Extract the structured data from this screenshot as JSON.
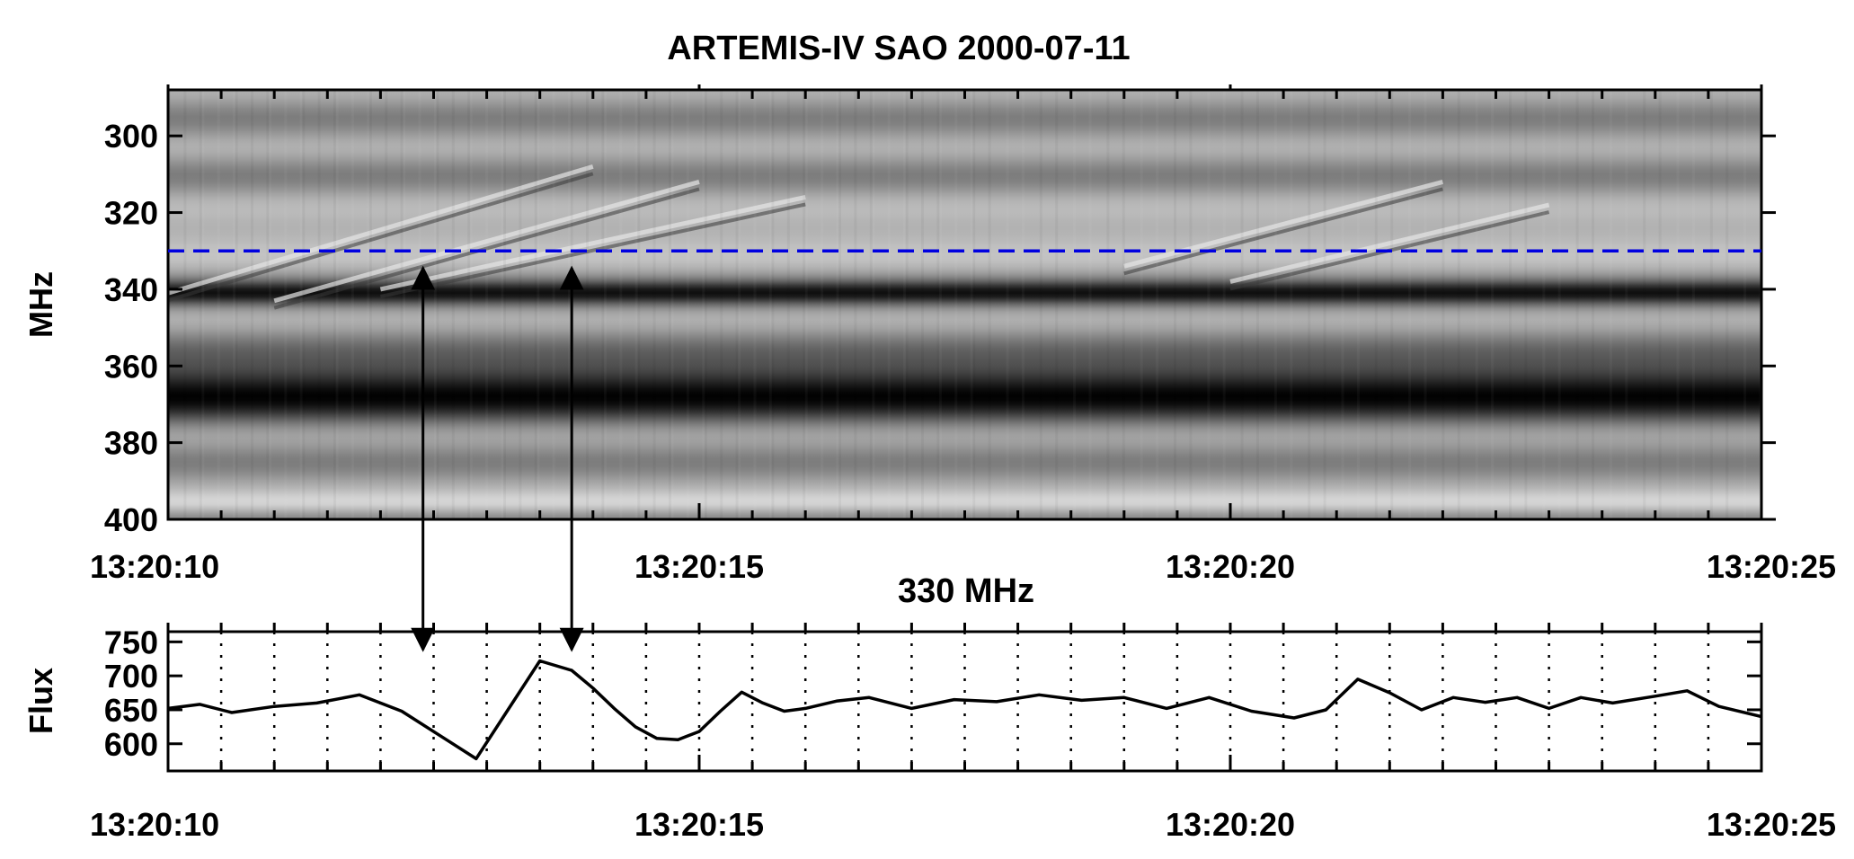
{
  "chart_data": [
    {
      "type": "heatmap",
      "title": "ARTEMIS-IV  SAO 2000-07-11",
      "xlabel": "",
      "ylabel": "MHz",
      "x_range": [
        "13:20:10",
        "13:20:25"
      ],
      "x_ticklabels": [
        "13:20:10",
        "13:20:15",
        "13:20:20",
        "13:20:25"
      ],
      "ylim": [
        400,
        288
      ],
      "y_ticks": [
        300,
        320,
        340,
        360,
        380,
        400
      ],
      "y_ticklabels": [
        "300",
        "320",
        "340",
        "360",
        "380",
        "400"
      ],
      "colormap": "grayscale (dark = strong emission)",
      "marked_frequency": 330,
      "marked_frequency_color": "#0000e0",
      "dark_bands_mhz": [
        {
          "center": 341,
          "half_width": 3,
          "strength": 0.75
        },
        {
          "center": 366,
          "half_width": 8,
          "strength": 0.95
        }
      ],
      "bright_bands_mhz": [
        {
          "center": 396,
          "half_width": 3
        },
        {
          "center": 326,
          "half_width": 6
        }
      ],
      "drifting_features": [
        {
          "start": [
            "13:20:10",
            341
          ],
          "end": [
            "13:20:14",
            308
          ]
        },
        {
          "start": [
            "13:20:11",
            343
          ],
          "end": [
            "13:20:15",
            312
          ]
        },
        {
          "start": [
            "13:20:12",
            340
          ],
          "end": [
            "13:20:16",
            316
          ]
        },
        {
          "start": [
            "13:20:19",
            334
          ],
          "end": [
            "13:20:22",
            312
          ]
        },
        {
          "start": [
            "13:20:20",
            338
          ],
          "end": [
            "13:20:23",
            318
          ]
        }
      ],
      "arrows": [
        {
          "time": "13:20:12.4",
          "from_mhz": 334,
          "to_panel": "flux"
        },
        {
          "time": "13:20:13.8",
          "from_mhz": 334,
          "to_panel": "flux"
        }
      ]
    },
    {
      "type": "line",
      "title": "330 MHz",
      "xlabel": "",
      "ylabel": "Flux",
      "x_range": [
        "13:20:10",
        "13:20:25"
      ],
      "x_unit": "seconds after 13:20:10",
      "x_ticklabels": [
        "13:20:10",
        "13:20:15",
        "13:20:20",
        "13:20:25"
      ],
      "ylim": [
        560,
        765
      ],
      "y_ticks": [
        600,
        650,
        700,
        750
      ],
      "y_ticklabels": [
        "600",
        "650",
        "700",
        "750"
      ],
      "grid": "vertical dotted lines every 0.5 s",
      "series": [
        {
          "x": [
            0.0,
            0.3,
            0.6,
            1.0,
            1.4,
            1.8,
            2.2,
            2.6,
            2.9,
            3.2,
            3.5,
            3.8,
            4.0,
            4.2,
            4.4,
            4.6,
            4.8,
            5.0,
            5.2,
            5.4,
            5.6,
            5.8,
            6.0,
            6.3,
            6.6,
            7.0,
            7.4,
            7.8,
            8.2,
            8.6,
            9.0,
            9.4,
            9.8,
            10.2,
            10.6,
            10.9,
            11.2,
            11.5,
            11.8,
            12.1,
            12.4,
            12.7,
            13.0,
            13.3,
            13.6,
            14.0,
            14.3,
            14.6,
            15.0
          ],
          "values": [
            652,
            658,
            646,
            655,
            660,
            672,
            648,
            608,
            578,
            650,
            722,
            708,
            682,
            652,
            625,
            608,
            606,
            618,
            648,
            676,
            660,
            648,
            652,
            663,
            668,
            652,
            665,
            662,
            672,
            664,
            668,
            652,
            668,
            648,
            638,
            650,
            695,
            675,
            650,
            668,
            661,
            668,
            652,
            668,
            660,
            670,
            678,
            655,
            640
          ]
        }
      ]
    }
  ]
}
